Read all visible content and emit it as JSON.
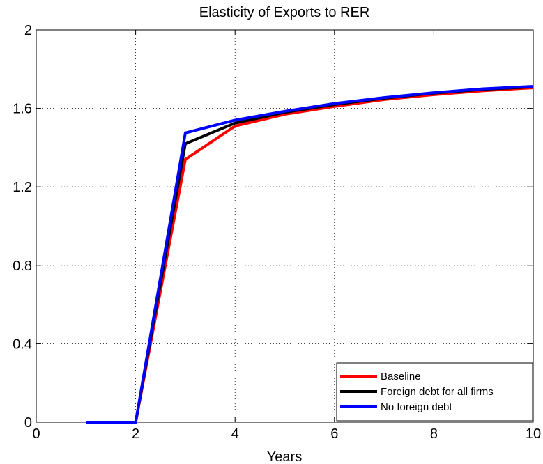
{
  "chart_data": {
    "type": "line",
    "title": "Elasticity of Exports to RER",
    "xlabel": "Years",
    "ylabel": "",
    "xlim": [
      0,
      10
    ],
    "ylim": [
      0,
      2
    ],
    "x_ticks": [
      "0",
      "2",
      "4",
      "6",
      "8",
      "10"
    ],
    "y_ticks": [
      "0",
      "0.4",
      "0.8",
      "1.2",
      "1.6",
      "2"
    ],
    "grid": true,
    "legend_position": "bottom-right",
    "x": [
      1,
      2,
      3,
      4,
      5,
      6,
      7,
      8,
      9,
      10
    ],
    "series": [
      {
        "name": "Baseline",
        "color": "#ff0000",
        "values": [
          0,
          0,
          1.34,
          1.51,
          1.57,
          1.61,
          1.645,
          1.67,
          1.69,
          1.705
        ]
      },
      {
        "name": "Foreign debt for all firms",
        "color": "#000000",
        "values": [
          0,
          0,
          1.42,
          1.525,
          1.58,
          1.62,
          1.652,
          1.678,
          1.697,
          1.71
        ]
      },
      {
        "name": "No foreign debt",
        "color": "#0000ff",
        "values": [
          0,
          0,
          1.475,
          1.54,
          1.585,
          1.625,
          1.655,
          1.68,
          1.7,
          1.712
        ]
      }
    ]
  }
}
